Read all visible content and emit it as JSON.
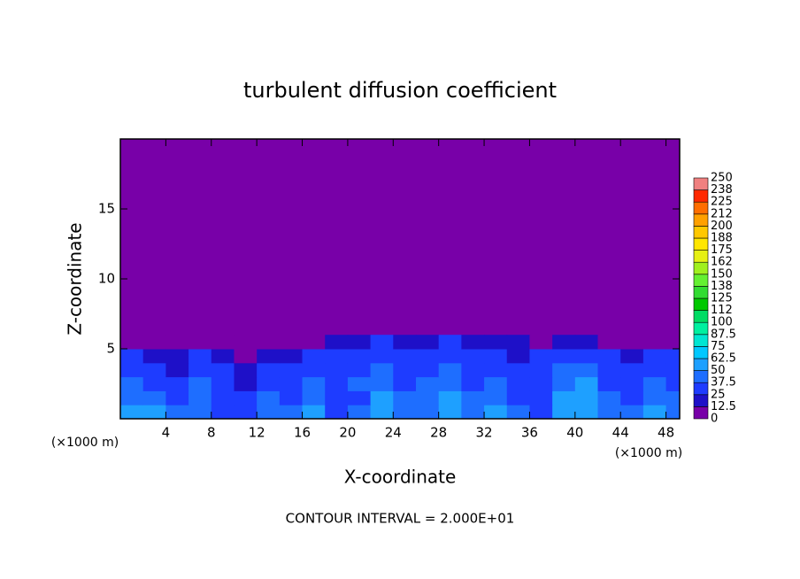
{
  "chart_data": {
    "type": "contour",
    "title": "turbulent diffusion coefficient",
    "xlabel": "X-coordinate",
    "ylabel": "Z-coordinate",
    "x_unit_labels": [
      "(×1000 m)",
      "(×1000 m)"
    ],
    "footer": "CONTOUR INTERVAL = 2.000E+01",
    "xlim": [
      0,
      49.2
    ],
    "ylim": [
      0,
      20
    ],
    "xticks": [
      4,
      8,
      12,
      16,
      20,
      24,
      28,
      32,
      36,
      40,
      44,
      48
    ],
    "yticks": [
      5,
      10,
      15
    ],
    "field": {
      "x_edges": [
        0,
        2,
        4,
        6,
        8,
        10,
        12,
        14,
        16,
        18,
        20,
        22,
        24,
        26,
        28,
        30,
        32,
        34,
        36,
        38,
        40,
        42,
        44,
        46,
        48,
        49.2
      ],
      "z_edges": [
        0,
        1,
        2,
        3,
        4,
        5,
        6
      ],
      "values": [
        [
          55,
          60,
          45,
          40,
          35,
          30,
          45,
          40,
          50,
          35,
          40,
          55,
          45,
          40,
          60,
          45,
          50,
          40,
          35,
          55,
          60,
          45,
          40,
          50,
          45
        ],
        [
          45,
          40,
          30,
          45,
          35,
          25,
          40,
          35,
          45,
          30,
          35,
          50,
          40,
          45,
          50,
          40,
          45,
          35,
          30,
          50,
          55,
          40,
          35,
          45,
          40
        ],
        [
          40,
          35,
          25,
          40,
          30,
          20,
          35,
          30,
          40,
          25,
          40,
          45,
          35,
          40,
          45,
          35,
          40,
          30,
          35,
          45,
          50,
          35,
          30,
          40,
          35
        ],
        [
          35,
          30,
          20,
          35,
          25,
          15,
          30,
          25,
          35,
          30,
          35,
          40,
          30,
          35,
          40,
          30,
          35,
          25,
          30,
          40,
          45,
          30,
          25,
          35,
          30
        ],
        [
          25,
          20,
          20,
          30,
          15,
          10,
          20,
          15,
          25,
          25,
          30,
          35,
          25,
          30,
          35,
          25,
          30,
          20,
          25,
          30,
          35,
          25,
          20,
          25,
          25
        ],
        [
          5,
          5,
          5,
          5,
          5,
          5,
          5,
          5,
          5,
          15,
          20,
          25,
          20,
          20,
          25,
          20,
          20,
          15,
          10,
          15,
          20,
          10,
          5,
          10,
          10
        ]
      ]
    },
    "colorbar": {
      "levels": [
        0,
        12.5,
        25,
        37.5,
        50,
        62.5,
        75,
        87.5,
        100,
        112,
        125,
        138,
        150,
        162,
        175,
        188,
        200,
        212,
        225,
        238,
        250
      ],
      "colors": [
        "#7800a8",
        "#1e10c8",
        "#1e3cff",
        "#1e6eff",
        "#1ea0ff",
        "#00c8ff",
        "#00e6d2",
        "#00f0a0",
        "#00dc64",
        "#00c800",
        "#32dc32",
        "#64f032",
        "#a0f01e",
        "#e6f014",
        "#ffe600",
        "#ffc800",
        "#ffa000",
        "#ff6e00",
        "#ff2800",
        "#f08080"
      ]
    }
  }
}
